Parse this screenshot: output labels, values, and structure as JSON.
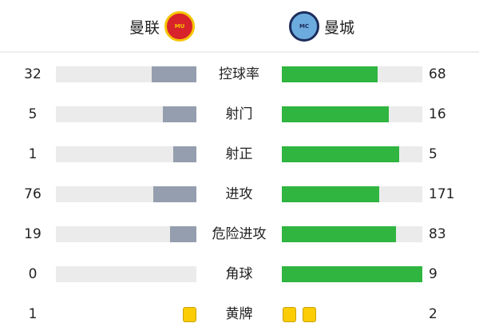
{
  "home": {
    "name": "曼联",
    "crest": "manchester-united-crest",
    "color": "#959eae"
  },
  "away": {
    "name": "曼城",
    "crest": "manchester-city-crest",
    "color": "#2fb540"
  },
  "stats": [
    {
      "label": "控球率",
      "home": "32",
      "away": "68",
      "home_share": 0.32,
      "away_share": 0.68
    },
    {
      "label": "射门",
      "home": "5",
      "away": "16",
      "home_share": 0.238,
      "away_share": 0.762
    },
    {
      "label": "射正",
      "home": "1",
      "away": "5",
      "home_share": 0.167,
      "away_share": 0.833
    },
    {
      "label": "进攻",
      "home": "76",
      "away": "171",
      "home_share": 0.308,
      "away_share": 0.692
    },
    {
      "label": "危险进攻",
      "home": "19",
      "away": "83",
      "home_share": 0.186,
      "away_share": 0.814
    },
    {
      "label": "角球",
      "home": "0",
      "away": "9",
      "home_share": 0,
      "away_share": 1
    }
  ],
  "yellow": {
    "label": "黄牌",
    "home": "1",
    "away": "2",
    "color": "#fccc05"
  }
}
